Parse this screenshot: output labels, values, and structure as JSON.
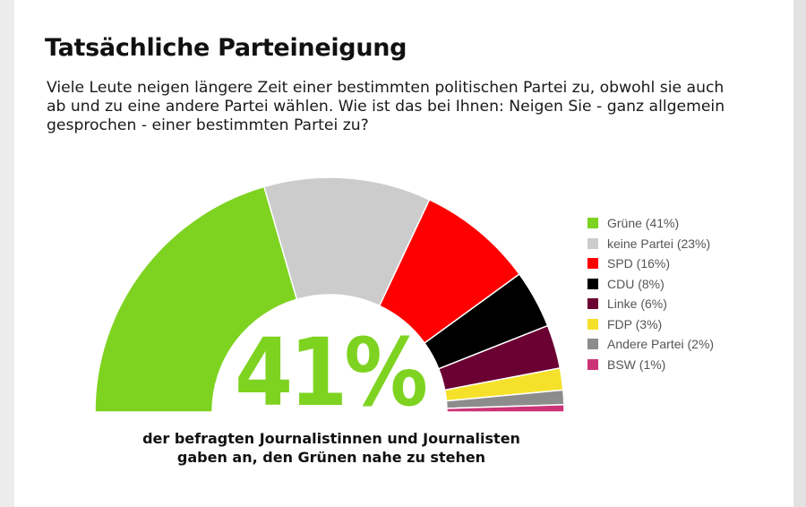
{
  "title": "Tatsächliche Parteineigung",
  "question": "Viele Leute neigen längere Zeit einer bestimmten politischen Partei zu, obwohl sie auch ab und zu eine andere Partei wählen. Wie ist das bei Ihnen: Neigen Sie - ganz allgemein gesprochen - einer bestimmten Partei zu?",
  "highlight": {
    "value_label": "41%",
    "color": "#7ed321"
  },
  "caption": {
    "line1": "der befragten Journalistinnen und Journalisten",
    "line2": "gaben an, den Grünen nahe zu stehen"
  },
  "chart_data": {
    "type": "pie",
    "variant": "semicircle-donut",
    "categories": [
      "Grüne",
      "keine Partei",
      "SPD",
      "CDU",
      "Linke",
      "FDP",
      "Andere Partei",
      "BSW"
    ],
    "values": [
      41,
      23,
      16,
      8,
      6,
      3,
      2,
      1
    ],
    "colors": [
      "#7ed321",
      "#cccccc",
      "#ff0000",
      "#000000",
      "#6b0032",
      "#f5e12a",
      "#8c8c8c",
      "#cc3377"
    ],
    "legend_labels": [
      "Grüne (41%)",
      "keine Partei (23%)",
      "SPD (16%)",
      "CDU (8%)",
      "Linke (6%)",
      "FDP (3%)",
      "Andere Partei (2%)",
      "BSW (1%)"
    ],
    "legend_position": "right",
    "unit": "%"
  }
}
